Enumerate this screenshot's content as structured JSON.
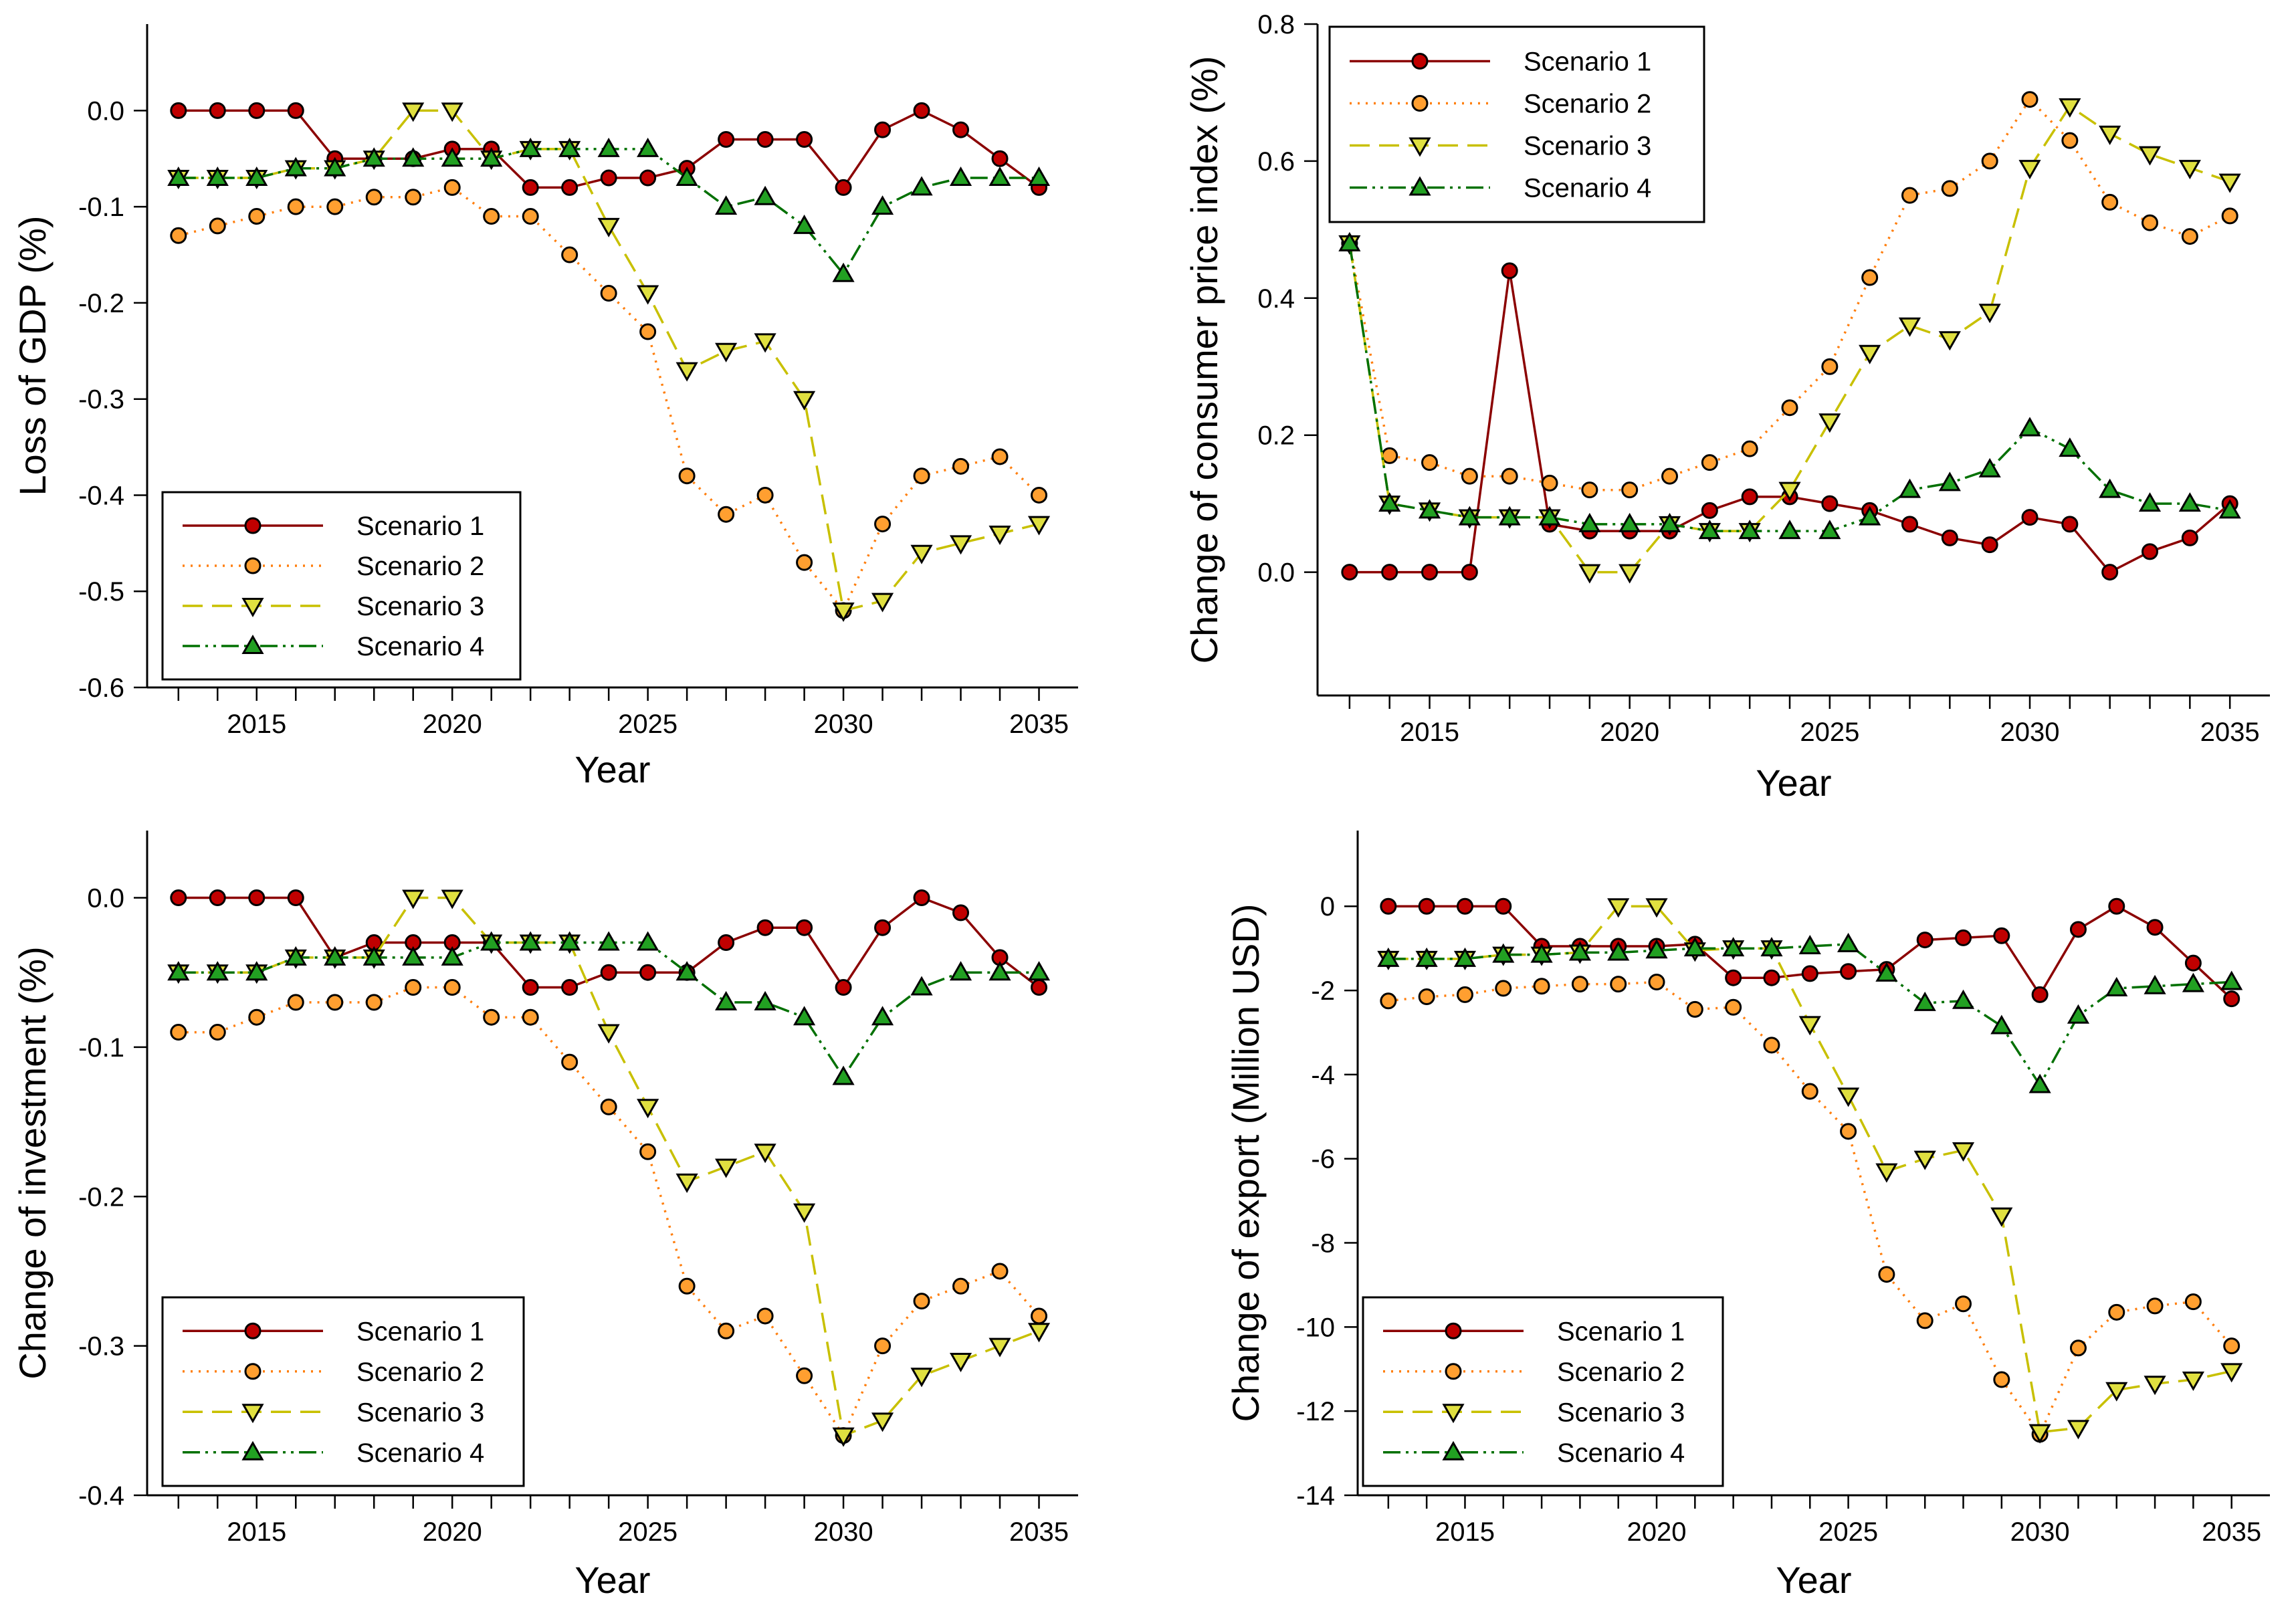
{
  "colors": {
    "scenario1_line": "#8b0000",
    "scenario1_fill": "#c00000",
    "scenario2_line": "#ff7f0e",
    "scenario2_fill": "#ff9f30",
    "scenario3_line": "#c8c000",
    "scenario3_fill": "#e0e040",
    "scenario4_line": "#007000",
    "scenario4_fill": "#22a022"
  },
  "chart_data": [
    {
      "id": "gdp",
      "type": "line",
      "title": "",
      "xlabel": "Year",
      "ylabel": "Loss of GDP (%)",
      "xlim": [
        2012.2,
        2036.0
      ],
      "ylim": [
        -0.6,
        0.09
      ],
      "xticks": [
        2015,
        2020,
        2025,
        2030,
        2035
      ],
      "yticks": [
        0.0,
        -0.1,
        -0.2,
        -0.3,
        -0.4,
        -0.5,
        -0.6
      ],
      "ytick_labels": [
        "0.0",
        "-0.1",
        "-0.2",
        "-0.3",
        "-0.4",
        "-0.5",
        "-0.6"
      ],
      "legend_position": "bottom-left",
      "x": [
        2013,
        2014,
        2015,
        2016,
        2017,
        2018,
        2019,
        2020,
        2021,
        2022,
        2023,
        2024,
        2025,
        2026,
        2027,
        2028,
        2029,
        2030,
        2031,
        2032,
        2033,
        2034,
        2035
      ],
      "series": [
        {
          "name": "Scenario 1",
          "values": [
            0,
            0,
            0,
            0,
            -0.05,
            -0.05,
            -0.05,
            -0.04,
            -0.04,
            -0.08,
            -0.08,
            -0.07,
            -0.07,
            -0.06,
            -0.03,
            -0.03,
            -0.03,
            -0.08,
            -0.02,
            0,
            -0.02,
            -0.05,
            -0.08
          ]
        },
        {
          "name": "Scenario 2",
          "values": [
            -0.13,
            -0.12,
            -0.11,
            -0.1,
            -0.1,
            -0.09,
            -0.09,
            -0.08,
            -0.11,
            -0.11,
            -0.15,
            -0.19,
            -0.23,
            -0.38,
            -0.42,
            -0.4,
            -0.47,
            -0.52,
            -0.43,
            -0.38,
            -0.37,
            -0.36,
            -0.4
          ]
        },
        {
          "name": "Scenario 3",
          "values": [
            -0.07,
            -0.07,
            -0.07,
            -0.06,
            -0.06,
            -0.05,
            0,
            0,
            -0.05,
            -0.04,
            -0.04,
            -0.12,
            -0.19,
            -0.27,
            -0.25,
            -0.24,
            -0.3,
            -0.52,
            -0.51,
            -0.46,
            -0.45,
            -0.44,
            -0.43
          ]
        },
        {
          "name": "Scenario 4",
          "values": [
            -0.07,
            -0.07,
            -0.07,
            -0.06,
            -0.06,
            -0.05,
            -0.05,
            -0.05,
            -0.05,
            -0.04,
            -0.04,
            -0.04,
            -0.04,
            -0.07,
            -0.1,
            -0.09,
            -0.12,
            -0.17,
            -0.1,
            -0.08,
            -0.07,
            -0.07,
            -0.07
          ]
        }
      ]
    },
    {
      "id": "cpi",
      "type": "line",
      "title": "",
      "xlabel": "Year",
      "ylabel": "Change of consumer price index (%)",
      "xlim": [
        2012.2,
        2036.0
      ],
      "ylim": [
        -0.18,
        0.8
      ],
      "xticks": [
        2015,
        2020,
        2025,
        2030,
        2035
      ],
      "yticks": [
        0.0,
        0.2,
        0.4,
        0.6,
        0.8
      ],
      "ytick_labels": [
        "0.0",
        "0.2",
        "0.4",
        "0.6",
        "0.8"
      ],
      "legend_position": "top-left",
      "x": [
        2013,
        2014,
        2015,
        2016,
        2017,
        2018,
        2019,
        2020,
        2021,
        2022,
        2023,
        2024,
        2025,
        2026,
        2027,
        2028,
        2029,
        2030,
        2031,
        2032,
        2033,
        2034,
        2035
      ],
      "series": [
        {
          "name": "Scenario 1",
          "values": [
            0,
            0,
            0,
            0,
            0.44,
            0.07,
            0.06,
            0.06,
            0.06,
            0.09,
            0.11,
            0.11,
            0.1,
            0.09,
            0.07,
            0.05,
            0.04,
            0.08,
            0.07,
            0,
            0.03,
            0.05,
            0.1
          ]
        },
        {
          "name": "Scenario 2",
          "values": [
            0.48,
            0.17,
            0.16,
            0.14,
            0.14,
            0.13,
            0.12,
            0.12,
            0.14,
            0.16,
            0.18,
            0.24,
            0.3,
            0.43,
            0.55,
            0.56,
            0.6,
            0.69,
            0.63,
            0.54,
            0.51,
            0.49,
            0.52
          ]
        },
        {
          "name": "Scenario 3",
          "values": [
            0.48,
            0.1,
            0.09,
            0.08,
            0.08,
            0.08,
            0,
            0,
            0.07,
            0.06,
            0.06,
            0.12,
            0.22,
            0.32,
            0.36,
            0.34,
            0.38,
            0.59,
            0.68,
            0.64,
            0.61,
            0.59,
            0.57
          ]
        },
        {
          "name": "Scenario 4",
          "values": [
            0.48,
            0.1,
            0.09,
            0.08,
            0.08,
            0.08,
            0.07,
            0.07,
            0.07,
            0.06,
            0.06,
            0.06,
            0.06,
            0.08,
            0.12,
            0.13,
            0.15,
            0.21,
            0.18,
            0.12,
            0.1,
            0.1,
            0.09
          ]
        }
      ]
    },
    {
      "id": "investment",
      "type": "line",
      "title": "",
      "xlabel": "Year",
      "ylabel": "Change of investment (%)",
      "xlim": [
        2012.2,
        2036.0
      ],
      "ylim": [
        -0.4,
        0.045
      ],
      "xticks": [
        2015,
        2020,
        2025,
        2030,
        2035
      ],
      "yticks": [
        0.0,
        -0.1,
        -0.2,
        -0.3,
        -0.4
      ],
      "ytick_labels": [
        "0.0",
        "-0.1",
        "-0.2",
        "-0.3",
        "-0.4"
      ],
      "legend_position": "bottom-left",
      "x": [
        2013,
        2014,
        2015,
        2016,
        2017,
        2018,
        2019,
        2020,
        2021,
        2022,
        2023,
        2024,
        2025,
        2026,
        2027,
        2028,
        2029,
        2030,
        2031,
        2032,
        2033,
        2034,
        2035
      ],
      "series": [
        {
          "name": "Scenario 1",
          "values": [
            0,
            0,
            0,
            0,
            -0.04,
            -0.03,
            -0.03,
            -0.03,
            -0.03,
            -0.06,
            -0.06,
            -0.05,
            -0.05,
            -0.05,
            -0.03,
            -0.02,
            -0.02,
            -0.06,
            -0.02,
            0,
            -0.01,
            -0.04,
            -0.06
          ]
        },
        {
          "name": "Scenario 2",
          "values": [
            -0.09,
            -0.09,
            -0.08,
            -0.07,
            -0.07,
            -0.07,
            -0.06,
            -0.06,
            -0.08,
            -0.08,
            -0.11,
            -0.14,
            -0.17,
            -0.26,
            -0.29,
            -0.28,
            -0.32,
            -0.36,
            -0.3,
            -0.27,
            -0.26,
            -0.25,
            -0.28
          ]
        },
        {
          "name": "Scenario 3",
          "values": [
            -0.05,
            -0.05,
            -0.05,
            -0.04,
            -0.04,
            -0.04,
            0,
            0,
            -0.03,
            -0.03,
            -0.03,
            -0.09,
            -0.14,
            -0.19,
            -0.18,
            -0.17,
            -0.21,
            -0.36,
            -0.35,
            -0.32,
            -0.31,
            -0.3,
            -0.29
          ]
        },
        {
          "name": "Scenario 4",
          "values": [
            -0.05,
            -0.05,
            -0.05,
            -0.04,
            -0.04,
            -0.04,
            -0.04,
            -0.04,
            -0.03,
            -0.03,
            -0.03,
            -0.03,
            -0.03,
            -0.05,
            -0.07,
            -0.07,
            -0.08,
            -0.12,
            -0.08,
            -0.06,
            -0.05,
            -0.05,
            -0.05
          ]
        }
      ]
    },
    {
      "id": "export",
      "type": "line",
      "title": "",
      "xlabel": "Year",
      "ylabel": "Change of export (Million USD)",
      "xlim": [
        2012.2,
        2036.0
      ],
      "ylim": [
        -14,
        1.8
      ],
      "xticks": [
        2015,
        2020,
        2025,
        2030,
        2035
      ],
      "yticks": [
        0,
        -2,
        -4,
        -6,
        -8,
        -10,
        -12,
        -14
      ],
      "ytick_labels": [
        "0",
        "-2",
        "-4",
        "-6",
        "-8",
        "-10",
        "-12",
        "-14"
      ],
      "legend_position": "bottom-left",
      "x": [
        2013,
        2014,
        2015,
        2016,
        2017,
        2018,
        2019,
        2020,
        2021,
        2022,
        2023,
        2024,
        2025,
        2026,
        2027,
        2028,
        2029,
        2030,
        2031,
        2032,
        2033,
        2034,
        2035
      ],
      "series": [
        {
          "name": "Scenario 1",
          "values": [
            0,
            0,
            0,
            0,
            -0.95,
            -0.95,
            -0.95,
            -0.95,
            -0.9,
            -1.7,
            -1.7,
            -1.6,
            -1.55,
            -1.5,
            -0.8,
            -0.75,
            -0.7,
            -2.1,
            -0.55,
            0,
            -0.5,
            -1.35,
            -2.2
          ]
        },
        {
          "name": "Scenario 2",
          "values": [
            -2.25,
            -2.15,
            -2.1,
            -1.95,
            -1.9,
            -1.85,
            -1.85,
            -1.8,
            -2.45,
            -2.4,
            -3.3,
            -4.4,
            -5.35,
            -8.75,
            -9.85,
            -9.45,
            -11.25,
            -12.55,
            -10.5,
            -9.65,
            -9.5,
            -9.4,
            -10.45
          ]
        },
        {
          "name": "Scenario 3",
          "values": [
            -1.25,
            -1.25,
            -1.25,
            -1.15,
            -1.15,
            -1.1,
            0,
            0,
            -1.05,
            -1.0,
            -1.0,
            -2.8,
            -4.5,
            -6.3,
            -6.0,
            -5.8,
            -7.35,
            -12.5,
            -12.4,
            -11.5,
            -11.35,
            -11.25,
            -11.05
          ]
        },
        {
          "name": "Scenario 4",
          "values": [
            -1.25,
            -1.25,
            -1.25,
            -1.15,
            -1.15,
            -1.1,
            -1.1,
            -1.05,
            -1.0,
            -1.0,
            -1.0,
            -0.95,
            -0.9,
            -1.6,
            -2.3,
            -2.25,
            -2.85,
            -4.25,
            -2.6,
            -1.95,
            -1.9,
            -1.85,
            -1.8
          ]
        }
      ]
    }
  ]
}
